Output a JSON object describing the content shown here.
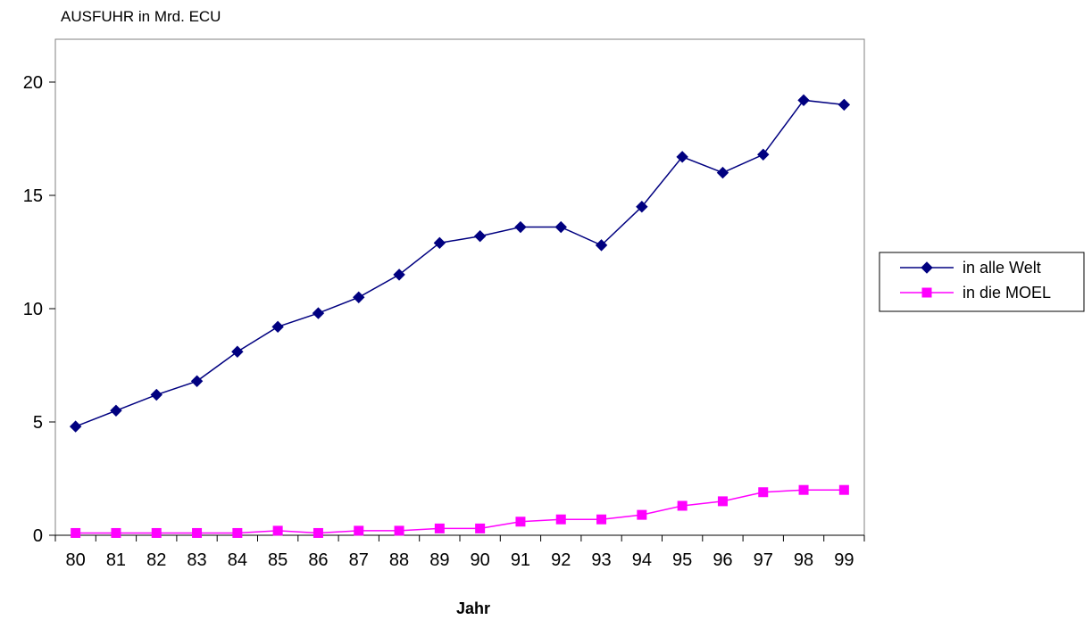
{
  "chart_data": {
    "type": "line",
    "title": "AUSFUHR in Mrd. ECU",
    "xlabel": "Jahr",
    "ylabel": "",
    "ylim": [
      0,
      20
    ],
    "yticks": [
      0,
      5,
      10,
      15,
      20
    ],
    "categories": [
      "80",
      "81",
      "82",
      "83",
      "84",
      "85",
      "86",
      "87",
      "88",
      "89",
      "90",
      "91",
      "92",
      "93",
      "94",
      "95",
      "96",
      "97",
      "98",
      "99"
    ],
    "series": [
      {
        "name": "in alle Welt",
        "color": "#000080",
        "marker": "diamond",
        "values": [
          4.8,
          5.5,
          6.2,
          6.8,
          8.1,
          9.2,
          9.8,
          10.5,
          11.5,
          12.9,
          13.2,
          13.6,
          13.6,
          12.8,
          14.5,
          16.7,
          16.0,
          16.8,
          19.2,
          19.0
        ]
      },
      {
        "name": "in die MOEL",
        "color": "#ff00ff",
        "marker": "square",
        "values": [
          0.1,
          0.1,
          0.1,
          0.1,
          0.1,
          0.2,
          0.1,
          0.2,
          0.2,
          0.3,
          0.3,
          0.6,
          0.7,
          0.7,
          0.9,
          1.3,
          1.5,
          1.9,
          2.0,
          2.0
        ]
      }
    ],
    "grid": false,
    "legend_position": "right"
  }
}
